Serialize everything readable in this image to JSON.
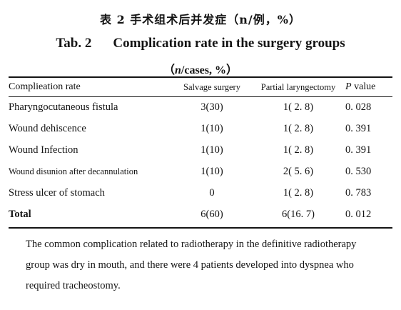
{
  "caption": {
    "cn": "表 2  手术组术后并发症（n/例，%）",
    "tab_number": "Tab. 2",
    "tab_title": "Complication rate in the surgery groups",
    "unit_n": "n",
    "unit_rest": "/cases, %",
    "unit_open": "（",
    "unit_close": "）"
  },
  "table": {
    "headers": {
      "label": "Complieation rate",
      "salvage": "Salvage surgery",
      "partial": "Partial laryngectomy",
      "p_symbol": "P",
      "p_rest": " value"
    },
    "rows": [
      {
        "label": "Pharyngocutaneous fistula",
        "salvage": "3(30)",
        "partial": "1( 2. 8)",
        "p": "0. 028"
      },
      {
        "label": "Wound dehiscence",
        "salvage": "1(10)",
        "partial": "1( 2. 8)",
        "p": "0. 391"
      },
      {
        "label": "Wound Infection",
        "salvage": "1(10)",
        "partial": "1( 2. 8)",
        "p": "0. 391"
      },
      {
        "label": "Wound disunion after decannulation",
        "salvage": "1(10)",
        "partial": "2( 5. 6)",
        "p": "0. 530"
      },
      {
        "label": "Stress ulcer of stomach",
        "salvage": "0",
        "partial": "1( 2. 8)",
        "p": "0. 783"
      },
      {
        "label": "Total",
        "salvage": "6(60)",
        "partial": "6(16. 7)",
        "p": "0. 012"
      }
    ]
  },
  "note": "The common complication related to radiotherapy in the definitive radiotherapy group was dry in mouth, and there were 4 patients developed into dyspnea who required tracheostomy."
}
